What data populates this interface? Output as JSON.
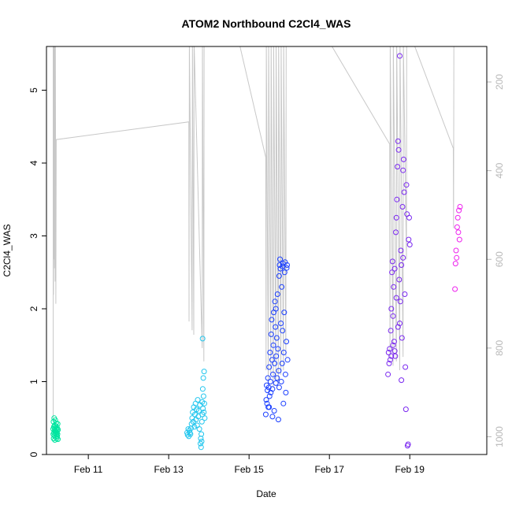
{
  "chart_data": {
    "type": "scatter",
    "title": "ATOM2 Northbound C2Cl4_WAS",
    "xlabel": "Date",
    "ylabel": "C2Cl4_WAS",
    "xlim": [
      "2016-02-09T23:00",
      "2016-02-20T22:00"
    ],
    "ylim": [
      0,
      5.6
    ],
    "x_ticks": [
      {
        "date": "2016-02-11",
        "label": "Feb 11"
      },
      {
        "date": "2016-02-13",
        "label": "Feb 13"
      },
      {
        "date": "2016-02-15",
        "label": "Feb 15"
      },
      {
        "date": "2016-02-17",
        "label": "Feb 17"
      },
      {
        "date": "2016-02-19",
        "label": "Feb 19"
      }
    ],
    "y_ticks": [
      0,
      1,
      2,
      3,
      4,
      5
    ],
    "y2": {
      "reversed": true,
      "lim": [
        120,
        1040
      ],
      "ticks": [
        200,
        400,
        600,
        800,
        1000
      ],
      "color": "#b8b8b8"
    },
    "grid": false,
    "legend": "none",
    "point_colors": [
      "#00e5a0",
      "#22c6ee",
      "#1b3fff",
      "#7a28f0",
      "#ee22ee"
    ],
    "groups": [
      {
        "color": "#00e5a0",
        "points": [
          [
            "2016-02-10T03:00",
            0.35
          ],
          [
            "2016-02-10T03:06",
            0.28
          ],
          [
            "2016-02-10T03:12",
            0.45
          ],
          [
            "2016-02-10T03:18",
            0.22
          ],
          [
            "2016-02-10T03:24",
            0.38
          ],
          [
            "2016-02-10T03:30",
            0.3
          ],
          [
            "2016-02-10T03:36",
            0.5
          ],
          [
            "2016-02-10T03:42",
            0.26
          ],
          [
            "2016-02-10T03:48",
            0.33
          ],
          [
            "2016-02-10T03:54",
            0.4
          ],
          [
            "2016-02-10T04:00",
            0.2
          ],
          [
            "2016-02-10T04:06",
            0.36
          ],
          [
            "2016-02-10T04:12",
            0.29
          ],
          [
            "2016-02-10T04:18",
            0.47
          ],
          [
            "2016-02-10T04:24",
            0.32
          ],
          [
            "2016-02-10T04:30",
            0.24
          ],
          [
            "2016-02-10T04:36",
            0.39
          ],
          [
            "2016-02-10T04:42",
            0.31
          ],
          [
            "2016-02-10T04:48",
            0.43
          ],
          [
            "2016-02-10T04:54",
            0.27
          ],
          [
            "2016-02-10T05:00",
            0.35
          ],
          [
            "2016-02-10T05:06",
            0.22
          ],
          [
            "2016-02-10T05:12",
            0.3
          ],
          [
            "2016-02-10T05:18",
            0.37
          ],
          [
            "2016-02-10T05:24",
            0.25
          ],
          [
            "2016-02-10T05:30",
            0.33
          ],
          [
            "2016-02-10T05:36",
            0.28
          ],
          [
            "2016-02-10T05:42",
            0.42
          ],
          [
            "2016-02-10T05:48",
            0.21
          ],
          [
            "2016-02-10T05:54",
            0.34
          ]
        ]
      },
      {
        "color": "#22c6ee",
        "points": [
          [
            "2016-02-13T11:00",
            0.3
          ],
          [
            "2016-02-13T11:20",
            0.27
          ],
          [
            "2016-02-13T11:40",
            0.35
          ],
          [
            "2016-02-13T12:00",
            0.25
          ],
          [
            "2016-02-13T12:20",
            0.33
          ],
          [
            "2016-02-13T12:40",
            0.3
          ],
          [
            "2016-02-13T13:00",
            0.28
          ],
          [
            "2016-02-13T13:20",
            0.36
          ],
          [
            "2016-02-13T13:40",
            0.42
          ],
          [
            "2016-02-13T14:00",
            0.5
          ],
          [
            "2016-02-13T14:20",
            0.58
          ],
          [
            "2016-02-13T14:40",
            0.45
          ],
          [
            "2016-02-13T15:00",
            0.65
          ],
          [
            "2016-02-13T15:20",
            0.38
          ],
          [
            "2016-02-13T15:40",
            0.55
          ],
          [
            "2016-02-13T16:00",
            0.7
          ],
          [
            "2016-02-13T16:20",
            0.48
          ],
          [
            "2016-02-13T16:40",
            0.62
          ],
          [
            "2016-02-13T17:00",
            0.4
          ],
          [
            "2016-02-13T17:20",
            0.75
          ],
          [
            "2016-02-13T17:40",
            0.52
          ],
          [
            "2016-02-13T18:00",
            0.6
          ],
          [
            "2016-02-13T18:20",
            0.35
          ],
          [
            "2016-02-13T18:40",
            0.68
          ],
          [
            "2016-02-13T19:00",
            0.15
          ],
          [
            "2016-02-13T19:10",
            0.22
          ],
          [
            "2016-02-13T19:20",
            0.1
          ],
          [
            "2016-02-13T19:30",
            0.28
          ],
          [
            "2016-02-13T19:40",
            0.18
          ],
          [
            "2016-02-13T19:50",
            0.45
          ],
          [
            "2016-02-13T20:00",
            0.72
          ],
          [
            "2016-02-13T20:10",
            0.55
          ],
          [
            "2016-02-13T20:20",
            0.9
          ],
          [
            "2016-02-13T20:30",
            0.63
          ],
          [
            "2016-02-13T20:40",
            1.05
          ],
          [
            "2016-02-13T20:50",
            0.8
          ],
          [
            "2016-02-13T21:00",
            0.58
          ],
          [
            "2016-02-13T21:10",
            1.14
          ],
          [
            "2016-02-13T21:20",
            0.7
          ],
          [
            "2016-02-13T21:30",
            0.5
          ],
          [
            "2016-02-13T20:15",
            1.59
          ]
        ]
      },
      {
        "color": "#1b3fff",
        "points": [
          [
            "2016-02-15T10:00",
            0.55
          ],
          [
            "2016-02-15T10:15",
            0.75
          ],
          [
            "2016-02-15T10:30",
            0.95
          ],
          [
            "2016-02-15T10:45",
            0.7
          ],
          [
            "2016-02-15T11:00",
            0.88
          ],
          [
            "2016-02-15T11:15",
            1.05
          ],
          [
            "2016-02-15T11:30",
            0.65
          ],
          [
            "2016-02-15T11:45",
            0.92
          ],
          [
            "2016-02-15T12:00",
            1.2
          ],
          [
            "2016-02-15T12:15",
            0.8
          ],
          [
            "2016-02-15T12:30",
            1.4
          ],
          [
            "2016-02-15T12:45",
            1.0
          ],
          [
            "2016-02-15T13:00",
            0.85
          ],
          [
            "2016-02-15T13:15",
            1.65
          ],
          [
            "2016-02-15T13:30",
            1.85
          ],
          [
            "2016-02-15T13:45",
            1.3
          ],
          [
            "2016-02-15T14:00",
            0.9
          ],
          [
            "2016-02-15T14:15",
            1.1
          ],
          [
            "2016-02-15T14:30",
            1.5
          ],
          [
            "2016-02-15T14:45",
            1.95
          ],
          [
            "2016-02-15T15:00",
            0.6
          ],
          [
            "2016-02-15T15:15",
            1.25
          ],
          [
            "2016-02-15T15:30",
            2.1
          ],
          [
            "2016-02-15T15:45",
            1.75
          ],
          [
            "2016-02-15T16:00",
            0.98
          ],
          [
            "2016-02-15T16:15",
            1.35
          ],
          [
            "2016-02-15T16:30",
            1.6
          ],
          [
            "2016-02-15T16:45",
            1.05
          ],
          [
            "2016-02-15T17:00",
            2.2
          ],
          [
            "2016-02-15T17:15",
            1.45
          ],
          [
            "2016-02-15T17:30",
            0.48
          ],
          [
            "2016-02-15T17:45",
            1.15
          ],
          [
            "2016-02-15T18:00",
            2.45
          ],
          [
            "2016-02-15T18:15",
            2.6
          ],
          [
            "2016-02-15T18:30",
            2.68
          ],
          [
            "2016-02-15T18:45",
            2.55
          ],
          [
            "2016-02-15T19:00",
            1.8
          ],
          [
            "2016-02-15T19:15",
            1.0
          ],
          [
            "2016-02-15T19:30",
            2.3
          ],
          [
            "2016-02-15T19:45",
            1.25
          ],
          [
            "2016-02-15T20:00",
            2.58
          ],
          [
            "2016-02-15T20:15",
            2.62
          ],
          [
            "2016-02-15T20:30",
            0.7
          ],
          [
            "2016-02-15T20:45",
            1.4
          ],
          [
            "2016-02-15T21:00",
            1.95
          ],
          [
            "2016-02-15T21:15",
            2.5
          ],
          [
            "2016-02-15T21:30",
            2.64
          ],
          [
            "2016-02-15T21:45",
            1.1
          ],
          [
            "2016-02-15T22:00",
            0.85
          ],
          [
            "2016-02-15T22:15",
            1.55
          ],
          [
            "2016-02-15T22:30",
            2.56
          ],
          [
            "2016-02-15T22:45",
            2.6
          ],
          [
            "2016-02-15T23:00",
            1.3
          ],
          [
            "2016-02-15T12:00",
            0.65
          ],
          [
            "2016-02-15T14:00",
            0.52
          ],
          [
            "2016-02-15T16:00",
            2.0
          ],
          [
            "2016-02-15T18:00",
            0.92
          ],
          [
            "2016-02-15T20:00",
            1.7
          ]
        ]
      },
      {
        "color": "#7a28f0",
        "points": [
          [
            "2016-02-18T11:00",
            1.1
          ],
          [
            "2016-02-18T11:20",
            1.4
          ],
          [
            "2016-02-18T11:40",
            1.25
          ],
          [
            "2016-02-18T12:00",
            1.45
          ],
          [
            "2016-02-18T12:20",
            1.3
          ],
          [
            "2016-02-18T12:40",
            1.7
          ],
          [
            "2016-02-18T13:00",
            2.0
          ],
          [
            "2016-02-18T13:20",
            2.5
          ],
          [
            "2016-02-18T13:40",
            2.65
          ],
          [
            "2016-02-18T14:00",
            1.9
          ],
          [
            "2016-02-18T14:20",
            2.3
          ],
          [
            "2016-02-18T14:40",
            1.55
          ],
          [
            "2016-02-18T15:00",
            2.55
          ],
          [
            "2016-02-18T15:20",
            1.35
          ],
          [
            "2016-02-18T15:40",
            3.05
          ],
          [
            "2016-02-18T16:00",
            3.25
          ],
          [
            "2016-02-18T16:20",
            3.5
          ],
          [
            "2016-02-18T16:40",
            3.95
          ],
          [
            "2016-02-18T17:00",
            4.3
          ],
          [
            "2016-02-18T17:20",
            4.18
          ],
          [
            "2016-02-18T17:40",
            2.4
          ],
          [
            "2016-02-18T18:00",
            1.8
          ],
          [
            "2016-02-18T18:20",
            2.1
          ],
          [
            "2016-02-18T18:40",
            2.8
          ],
          [
            "2016-02-18T19:00",
            2.6
          ],
          [
            "2016-02-18T19:20",
            1.6
          ],
          [
            "2016-02-18T19:40",
            3.4
          ],
          [
            "2016-02-18T20:00",
            3.9
          ],
          [
            "2016-02-18T20:20",
            4.05
          ],
          [
            "2016-02-18T20:40",
            3.6
          ],
          [
            "2016-02-18T21:00",
            2.2
          ],
          [
            "2016-02-18T21:20",
            1.2
          ],
          [
            "2016-02-18T21:40",
            0.62
          ],
          [
            "2016-02-18T22:00",
            3.7
          ],
          [
            "2016-02-18T22:20",
            3.3
          ],
          [
            "2016-02-18T22:40",
            0.12
          ],
          [
            "2016-02-18T23:00",
            0.14
          ],
          [
            "2016-02-18T23:20",
            2.95
          ],
          [
            "2016-02-18T23:40",
            3.25
          ],
          [
            "2016-02-19T00:00",
            2.88
          ],
          [
            "2016-02-18T18:00",
            5.47
          ],
          [
            "2016-02-18T15:00",
            1.42
          ],
          [
            "2016-02-18T16:00",
            2.15
          ],
          [
            "2016-02-18T17:00",
            1.75
          ],
          [
            "2016-02-18T19:00",
            1.02
          ],
          [
            "2016-02-18T20:00",
            2.7
          ],
          [
            "2016-02-18T14:00",
            1.5
          ],
          [
            "2016-02-18T13:00",
            1.35
          ]
        ]
      },
      {
        "color": "#ee22ee",
        "points": [
          [
            "2016-02-20T03:00",
            2.27
          ],
          [
            "2016-02-20T03:20",
            2.62
          ],
          [
            "2016-02-20T03:40",
            2.8
          ],
          [
            "2016-02-20T04:00",
            2.7
          ],
          [
            "2016-02-20T04:20",
            3.12
          ],
          [
            "2016-02-20T04:40",
            3.25
          ],
          [
            "2016-02-20T05:00",
            3.05
          ],
          [
            "2016-02-20T05:20",
            3.35
          ],
          [
            "2016-02-20T05:40",
            2.95
          ],
          [
            "2016-02-20T06:00",
            3.4
          ]
        ]
      }
    ]
  }
}
